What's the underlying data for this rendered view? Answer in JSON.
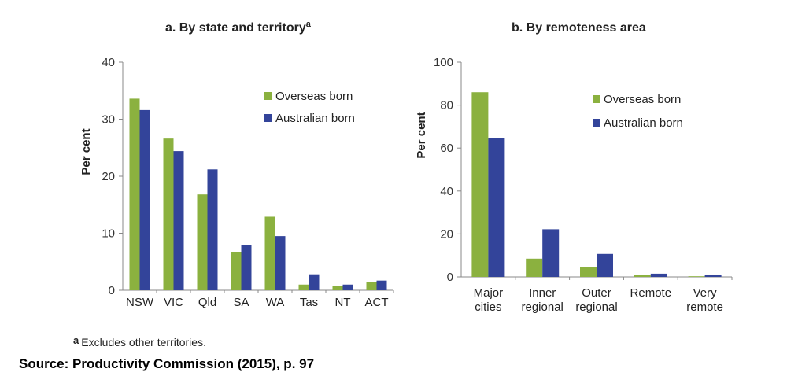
{
  "colors": {
    "overseas": "#8bb13f",
    "australian": "#33449a"
  },
  "footnote": {
    "marker": "a",
    "text": "Excludes other territories."
  },
  "source": "Source: Productivity Commission (2015), p. 97",
  "chart_data": [
    {
      "type": "bar",
      "title": "a.   By state and territory",
      "title_superscript": "a",
      "ylabel": "Per cent",
      "xlabel": "",
      "ylim": [
        0,
        40
      ],
      "yticks": [
        0,
        10,
        20,
        30,
        40
      ],
      "grid": false,
      "legend_position": "top-right",
      "categories": [
        "NSW",
        "VIC",
        "Qld",
        "SA",
        "WA",
        "Tas",
        "NT",
        "ACT"
      ],
      "series": [
        {
          "name": "Overseas born",
          "values": [
            33.6,
            26.6,
            16.8,
            6.7,
            12.9,
            1.0,
            0.7,
            1.5
          ]
        },
        {
          "name": "Australian born",
          "values": [
            31.6,
            24.4,
            21.2,
            7.9,
            9.5,
            2.8,
            1.0,
            1.7
          ]
        }
      ]
    },
    {
      "type": "bar",
      "title": "b.   By remoteness area",
      "ylabel": "Per cent",
      "xlabel": "",
      "ylim": [
        0,
        100
      ],
      "yticks": [
        0,
        20,
        40,
        60,
        80,
        100
      ],
      "grid": false,
      "legend_position": "top-right",
      "categories": [
        [
          "Major",
          "cities"
        ],
        [
          "Inner",
          "regional"
        ],
        [
          "Outer",
          "regional"
        ],
        [
          "Remote"
        ],
        [
          "Very",
          "remote"
        ]
      ],
      "series": [
        {
          "name": "Overseas born",
          "values": [
            86,
            8.5,
            4.5,
            0.8,
            0.3
          ]
        },
        {
          "name": "Australian born",
          "values": [
            64.5,
            22.2,
            10.7,
            1.5,
            1.1
          ]
        }
      ]
    }
  ]
}
